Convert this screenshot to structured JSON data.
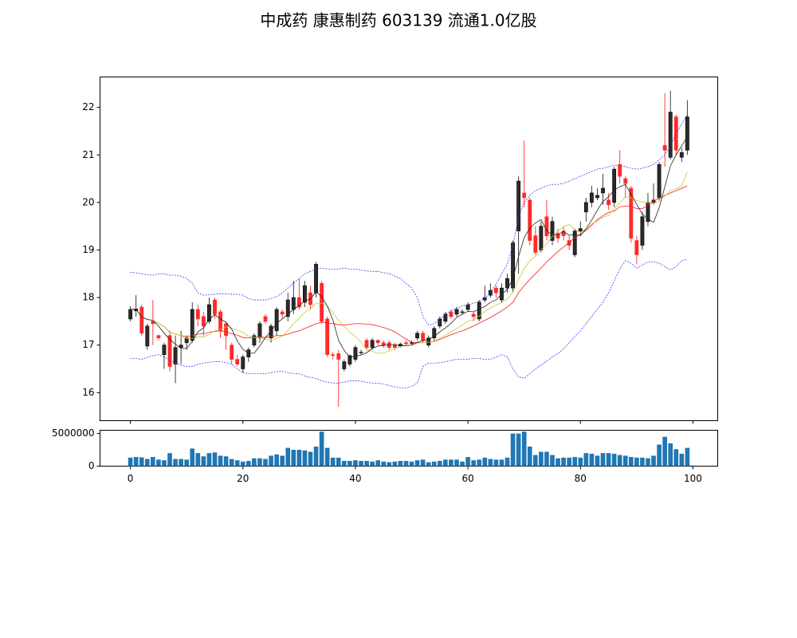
{
  "chart_data": [
    {
      "type": "candlestick",
      "title": "中成药 康惠制药 603139 流通1.0亿股",
      "x": [
        0,
        1,
        2,
        3,
        4,
        5,
        6,
        7,
        8,
        9,
        10,
        11,
        12,
        13,
        14,
        15,
        16,
        17,
        18,
        19,
        20,
        21,
        22,
        23,
        24,
        25,
        26,
        27,
        28,
        29,
        30,
        31,
        32,
        33,
        34,
        35,
        36,
        37,
        38,
        39,
        40,
        41,
        42,
        43,
        44,
        45,
        46,
        47,
        48,
        49,
        50,
        51,
        52,
        53,
        54,
        55,
        56,
        57,
        58,
        59,
        60,
        61,
        62,
        63,
        64,
        65,
        66,
        67,
        68,
        69,
        70,
        71,
        72,
        73,
        74,
        75,
        76,
        77,
        78,
        79,
        80,
        81,
        82,
        83,
        84,
        85,
        86,
        87,
        88,
        89,
        90,
        91,
        92,
        93,
        94,
        95,
        96,
        97,
        98,
        99
      ],
      "open": [
        17.55,
        17.72,
        17.8,
        16.98,
        17.5,
        17.2,
        16.8,
        17.2,
        16.6,
        16.95,
        17.05,
        17.1,
        17.75,
        17.6,
        17.5,
        17.95,
        17.7,
        17.45,
        17.0,
        16.7,
        16.5,
        16.75,
        17.0,
        17.15,
        17.6,
        17.15,
        17.3,
        17.7,
        17.6,
        17.75,
        18.0,
        17.9,
        18.1,
        18.1,
        18.3,
        17.55,
        16.8,
        16.82,
        16.5,
        16.6,
        16.7,
        16.85,
        17.1,
        16.95,
        17.1,
        17.05,
        17.05,
        17.0,
        16.98,
        17.05,
        17.05,
        17.15,
        17.25,
        17.0,
        17.15,
        17.4,
        17.5,
        17.7,
        17.65,
        17.7,
        17.75,
        17.65,
        17.55,
        17.95,
        18.05,
        18.2,
        17.95,
        18.2,
        18.2,
        19.4,
        20.2,
        20.05,
        19.3,
        19.0,
        19.7,
        19.2,
        19.35,
        19.4,
        19.2,
        18.9,
        19.4,
        19.8,
        20.0,
        20.1,
        20.2,
        20.05,
        20.0,
        20.8,
        20.5,
        20.3,
        19.2,
        19.1,
        19.6,
        20.0,
        20.1,
        21.2,
        20.95,
        21.8,
        20.95,
        21.1
      ],
      "high": [
        17.82,
        18.05,
        17.85,
        17.45,
        17.95,
        17.22,
        17.05,
        17.3,
        17.2,
        17.3,
        17.2,
        17.9,
        17.85,
        17.7,
        18.0,
        18.0,
        17.75,
        17.5,
        17.05,
        16.8,
        16.8,
        16.95,
        17.25,
        17.5,
        17.65,
        17.45,
        17.8,
        17.75,
        18.1,
        18.35,
        18.4,
        18.35,
        18.25,
        18.75,
        18.35,
        17.6,
        16.85,
        16.9,
        16.7,
        16.8,
        17.0,
        16.9,
        17.15,
        17.15,
        17.12,
        17.1,
        17.1,
        17.05,
        17.05,
        17.1,
        17.1,
        17.3,
        17.3,
        17.2,
        17.4,
        17.6,
        17.7,
        17.75,
        17.8,
        17.75,
        17.9,
        17.7,
        17.95,
        18.25,
        18.3,
        18.25,
        18.3,
        18.5,
        19.2,
        20.55,
        21.3,
        20.1,
        19.5,
        19.6,
        20.05,
        19.7,
        19.45,
        19.5,
        19.3,
        19.45,
        19.6,
        20.1,
        20.35,
        20.3,
        20.6,
        20.2,
        20.75,
        21.1,
        20.55,
        20.35,
        19.3,
        19.8,
        20.2,
        20.4,
        20.85,
        22.3,
        22.35,
        21.85,
        21.15,
        22.15
      ],
      "low": [
        17.5,
        17.6,
        17.2,
        16.9,
        17.0,
        17.1,
        16.5,
        16.45,
        16.2,
        16.6,
        16.9,
        17.05,
        17.4,
        17.2,
        17.45,
        17.55,
        17.15,
        16.9,
        16.6,
        16.55,
        16.42,
        16.65,
        16.95,
        17.05,
        17.45,
        17.05,
        17.2,
        17.55,
        17.5,
        17.65,
        17.75,
        17.8,
        17.75,
        18.0,
        17.45,
        16.75,
        16.7,
        15.7,
        16.45,
        16.55,
        16.65,
        16.8,
        16.9,
        16.9,
        17.0,
        16.95,
        16.9,
        16.9,
        16.95,
        17.0,
        17.0,
        17.1,
        17.05,
        16.95,
        17.1,
        17.35,
        17.45,
        17.55,
        17.6,
        17.65,
        17.7,
        17.5,
        17.5,
        17.9,
        18.0,
        18.0,
        17.9,
        18.1,
        18.1,
        18.5,
        19.9,
        19.1,
        18.9,
        18.95,
        19.2,
        19.1,
        19.15,
        19.2,
        19.0,
        18.85,
        19.3,
        19.6,
        19.9,
        20.05,
        19.95,
        19.85,
        19.9,
        20.4,
        20.1,
        19.15,
        18.7,
        19.0,
        19.5,
        19.95,
        20.05,
        20.75,
        20.9,
        21.0,
        20.85,
        21.0
      ],
      "close": [
        17.75,
        17.76,
        17.25,
        17.4,
        17.45,
        17.15,
        17.0,
        16.55,
        16.95,
        17.0,
        17.15,
        17.75,
        17.55,
        17.4,
        17.85,
        17.65,
        17.3,
        17.2,
        16.7,
        16.6,
        16.75,
        16.9,
        17.2,
        17.45,
        17.5,
        17.4,
        17.75,
        17.65,
        17.95,
        18.0,
        17.8,
        18.25,
        17.85,
        18.7,
        17.5,
        16.8,
        16.78,
        16.7,
        16.65,
        16.78,
        16.95,
        16.85,
        16.95,
        17.1,
        17.05,
        17.0,
        16.95,
        16.95,
        17.02,
        17.03,
        17.05,
        17.25,
        17.1,
        17.15,
        17.35,
        17.55,
        17.65,
        17.6,
        17.75,
        17.7,
        17.85,
        17.6,
        17.9,
        18.0,
        18.15,
        18.1,
        18.2,
        18.4,
        19.15,
        20.45,
        20.1,
        19.2,
        18.95,
        19.5,
        19.3,
        19.6,
        19.25,
        19.3,
        19.1,
        19.4,
        19.45,
        20.0,
        20.2,
        20.15,
        20.3,
        19.95,
        20.7,
        20.55,
        20.4,
        19.25,
        18.9,
        19.7,
        20.0,
        20.05,
        20.8,
        21.1,
        21.9,
        21.1,
        21.05,
        21.8
      ],
      "up_color": "#2b2b2b",
      "down_color": "#ff2a2a",
      "series": [
        {
          "color": "#3a3aff",
          "dashed": true,
          "values": [
            18.53,
            18.52,
            18.5,
            18.48,
            18.47,
            18.5,
            18.5,
            18.47,
            18.47,
            18.45,
            18.4,
            18.3,
            18.1,
            18.05,
            18.06,
            18.07,
            18.08,
            18.08,
            18.07,
            18.07,
            18.05,
            17.98,
            17.95,
            17.95,
            17.95,
            17.98,
            18.02,
            18.1,
            18.2,
            18.3,
            18.4,
            18.5,
            18.55,
            18.6,
            18.62,
            18.6,
            18.6,
            18.6,
            18.62,
            18.6,
            18.6,
            18.58,
            18.56,
            18.55,
            18.55,
            18.52,
            18.5,
            18.45,
            18.4,
            18.3,
            18.2,
            18.0,
            17.6,
            17.42,
            17.45,
            17.55,
            17.65,
            17.72,
            17.78,
            17.82,
            17.85,
            17.88,
            17.92,
            17.98,
            18.1,
            18.28,
            18.5,
            18.7,
            19.1,
            19.7,
            20.0,
            20.15,
            20.25,
            20.3,
            20.35,
            20.38,
            20.38,
            20.4,
            20.45,
            20.5,
            20.55,
            20.6,
            20.65,
            20.7,
            20.72,
            20.75,
            20.78,
            20.78,
            20.75,
            20.72,
            20.7,
            20.72,
            20.75,
            20.8,
            20.9,
            21.0,
            21.2,
            21.45,
            21.65,
            21.85
          ]
        },
        {
          "color": "#3a3aff",
          "dashed": true,
          "values": [
            16.72,
            16.72,
            16.7,
            16.74,
            16.78,
            16.8,
            16.75,
            16.68,
            16.62,
            16.58,
            16.55,
            16.55,
            16.6,
            16.62,
            16.64,
            16.65,
            16.65,
            16.63,
            16.6,
            16.5,
            16.42,
            16.4,
            16.4,
            16.4,
            16.4,
            16.42,
            16.44,
            16.45,
            16.42,
            16.4,
            16.4,
            16.35,
            16.32,
            16.3,
            16.25,
            16.22,
            16.2,
            16.2,
            16.22,
            16.25,
            16.25,
            16.24,
            16.22,
            16.2,
            16.2,
            16.18,
            16.15,
            16.12,
            16.1,
            16.1,
            16.13,
            16.2,
            16.55,
            16.62,
            16.62,
            16.63,
            16.65,
            16.68,
            16.7,
            16.7,
            16.7,
            16.72,
            16.72,
            16.7,
            16.7,
            16.75,
            16.8,
            16.75,
            16.5,
            16.33,
            16.3,
            16.4,
            16.5,
            16.58,
            16.66,
            16.75,
            16.82,
            16.92,
            17.05,
            17.18,
            17.3,
            17.45,
            17.6,
            17.75,
            17.9,
            18.1,
            18.35,
            18.6,
            18.78,
            18.72,
            18.62,
            18.68,
            18.75,
            18.75,
            18.72,
            18.65,
            18.58,
            18.65,
            18.78,
            18.8
          ]
        },
        {
          "color": "#ff1a1a",
          "dashed": false,
          "values": [
            17.75,
            17.76,
            17.59,
            17.54,
            17.52,
            17.46,
            17.39,
            17.27,
            17.23,
            17.2,
            17.18,
            17.2,
            17.23,
            17.24,
            17.27,
            17.29,
            17.3,
            17.28,
            17.24,
            17.21,
            17.16,
            17.15,
            17.16,
            17.17,
            17.16,
            17.17,
            17.2,
            17.2,
            17.23,
            17.27,
            17.3,
            17.35,
            17.4,
            17.45,
            17.48,
            17.47,
            17.45,
            17.43,
            17.42,
            17.44,
            17.45,
            17.45,
            17.44,
            17.43,
            17.4,
            17.37,
            17.33,
            17.28,
            17.2,
            17.13,
            17.06,
            17.05,
            17.05,
            17.06,
            17.08,
            17.12,
            17.17,
            17.22,
            17.26,
            17.3,
            17.35,
            17.4,
            17.46,
            17.52,
            17.58,
            17.65,
            17.72,
            17.8,
            17.9,
            18.1,
            18.25,
            18.38,
            18.5,
            18.62,
            18.75,
            18.86,
            18.97,
            19.06,
            19.16,
            19.26,
            19.33,
            19.41,
            19.52,
            19.64,
            19.72,
            19.79,
            19.82,
            19.91,
            19.92,
            19.92,
            19.87,
            19.87,
            19.94,
            20.03,
            20.09,
            20.15,
            20.2,
            20.25,
            20.3,
            20.35
          ]
        },
        {
          "color": "#c8c832",
          "dashed": false,
          "values": [
            17.75,
            17.76,
            17.59,
            17.54,
            17.52,
            17.46,
            17.39,
            17.27,
            17.23,
            17.2,
            17.14,
            17.14,
            17.17,
            17.17,
            17.23,
            17.3,
            17.33,
            17.38,
            17.35,
            17.31,
            17.27,
            17.19,
            17.16,
            17.16,
            17.12,
            17.1,
            17.14,
            17.19,
            17.31,
            17.45,
            17.56,
            17.69,
            17.76,
            17.88,
            17.88,
            17.82,
            17.68,
            17.52,
            17.39,
            17.27,
            17.18,
            17.06,
            16.9,
            16.87,
            16.83,
            16.83,
            16.88,
            16.93,
            16.97,
            16.99,
            17.0,
            17.04,
            17.05,
            17.06,
            17.09,
            17.14,
            17.21,
            17.28,
            17.35,
            17.42,
            17.5,
            17.53,
            17.61,
            17.7,
            17.78,
            17.84,
            17.89,
            17.97,
            18.11,
            18.38,
            18.61,
            18.77,
            18.87,
            19.0,
            19.13,
            19.29,
            19.4,
            19.49,
            19.54,
            19.43,
            19.37,
            19.43,
            19.55,
            19.61,
            19.69,
            19.73,
            19.87,
            19.99,
            20.12,
            20.1,
            20.04,
            20.01,
            19.99,
            19.98,
            20.03,
            20.13,
            20.25,
            20.29,
            20.35,
            20.64
          ]
        },
        {
          "color": "#222222",
          "dashed": false,
          "values": [
            17.75,
            17.76,
            17.59,
            17.54,
            17.52,
            17.4,
            17.25,
            17.12,
            17.02,
            16.93,
            16.93,
            17.08,
            17.28,
            17.36,
            17.54,
            17.64,
            17.55,
            17.48,
            17.34,
            17.09,
            16.91,
            16.83,
            16.83,
            16.98,
            17.16,
            17.29,
            17.46,
            17.55,
            17.65,
            17.75,
            17.83,
            17.93,
            17.97,
            18.12,
            18.02,
            17.82,
            17.53,
            17.1,
            16.89,
            16.74,
            16.77,
            16.79,
            16.84,
            16.93,
            16.98,
            16.99,
            17.01,
            17.01,
            16.99,
            16.99,
            17.0,
            17.06,
            17.09,
            17.12,
            17.18,
            17.28,
            17.36,
            17.46,
            17.58,
            17.65,
            17.71,
            17.7,
            17.76,
            17.81,
            17.9,
            17.95,
            18.07,
            18.17,
            18.4,
            18.86,
            19.26,
            19.46,
            19.57,
            19.64,
            19.41,
            19.31,
            19.32,
            19.39,
            19.31,
            19.33,
            19.3,
            19.45,
            19.63,
            19.84,
            20.02,
            20.12,
            20.26,
            20.33,
            20.38,
            20.17,
            19.96,
            19.76,
            19.65,
            19.58,
            19.89,
            20.33,
            20.77,
            21.0,
            21.19,
            21.39
          ]
        }
      ],
      "xlim": [
        -5.4,
        104.4
      ],
      "ylim": [
        15.41,
        22.64
      ],
      "yticks": [
        16,
        17,
        18,
        19,
        20,
        21,
        22
      ]
    },
    {
      "type": "bar",
      "color": "#1f77b4",
      "values": [
        1300000,
        1400000,
        1350000,
        1100000,
        1400000,
        1000000,
        900000,
        2000000,
        1100000,
        1100000,
        1000000,
        2700000,
        2000000,
        1500000,
        2000000,
        2100000,
        1600000,
        1500000,
        1100000,
        900000,
        700000,
        800000,
        1200000,
        1200000,
        1100000,
        1600000,
        1800000,
        1600000,
        2800000,
        2500000,
        2500000,
        2400000,
        2200000,
        3000000,
        5300000,
        2800000,
        1300000,
        1300000,
        800000,
        800000,
        900000,
        800000,
        800000,
        700000,
        900000,
        700000,
        600000,
        700000,
        800000,
        800000,
        700000,
        900000,
        1000000,
        600000,
        700000,
        800000,
        1000000,
        1000000,
        1000000,
        700000,
        1400000,
        900000,
        1000000,
        1300000,
        1100000,
        1000000,
        1000000,
        1300000,
        5000000,
        5000000,
        5300000,
        3000000,
        1700000,
        2200000,
        2200000,
        1700000,
        1200000,
        1300000,
        1300000,
        1400000,
        1300000,
        2000000,
        1900000,
        1600000,
        2000000,
        2000000,
        1900000,
        1700000,
        1600000,
        1400000,
        1300000,
        1300000,
        1200000,
        1600000,
        3300000,
        4500000,
        3500000,
        2600000,
        1900000,
        2800000
      ],
      "xlim": [
        -5.4,
        104.4
      ],
      "xticks": [
        0,
        20,
        40,
        60,
        80,
        100
      ],
      "ylim": [
        0,
        5500000
      ],
      "yticks": [
        0,
        5000000
      ]
    }
  ]
}
